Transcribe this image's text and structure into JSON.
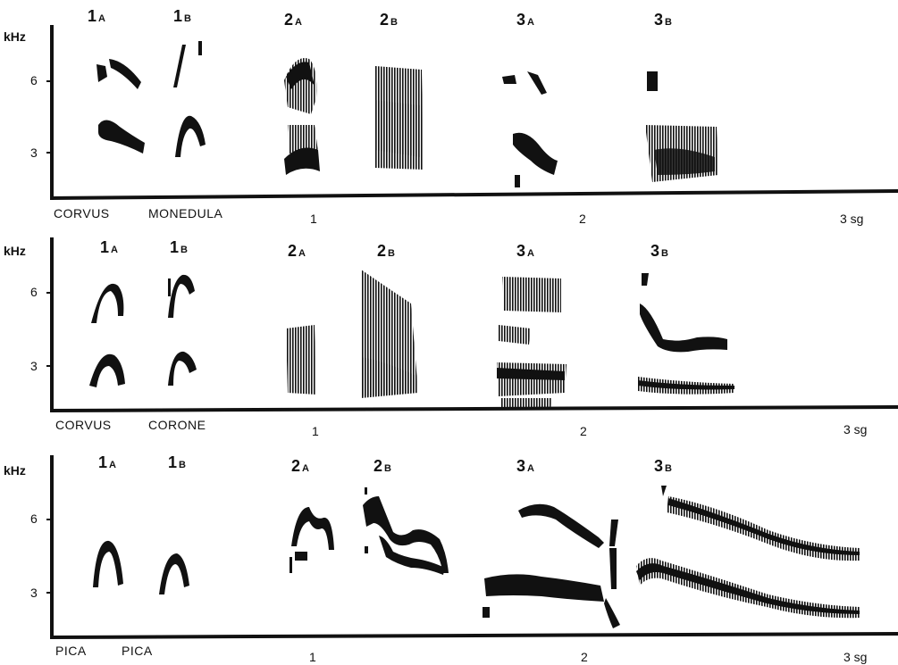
{
  "panels": [
    {
      "id": "monedula",
      "genus": "CORVUS",
      "species": "MONEDULA",
      "y_unit": "kHz",
      "y_ticks": [
        "6",
        "3"
      ],
      "time_ticks": [
        "1",
        "2",
        "3 sg"
      ],
      "segments": [
        {
          "num": "1",
          "sub": "A"
        },
        {
          "num": "1",
          "sub": "B"
        },
        {
          "num": "2",
          "sub": "A"
        },
        {
          "num": "2",
          "sub": "B"
        },
        {
          "num": "3",
          "sub": "A"
        },
        {
          "num": "3",
          "sub": "B"
        }
      ]
    },
    {
      "id": "corone",
      "genus": "CORVUS",
      "species": "CORONE",
      "y_unit": "kHz",
      "y_ticks": [
        "6",
        "3"
      ],
      "time_ticks": [
        "1",
        "2",
        "3 sg"
      ],
      "segments": [
        {
          "num": "1",
          "sub": "A"
        },
        {
          "num": "1",
          "sub": "B"
        },
        {
          "num": "2",
          "sub": "A"
        },
        {
          "num": "2",
          "sub": "B"
        },
        {
          "num": "3",
          "sub": "A"
        },
        {
          "num": "3",
          "sub": "B"
        }
      ]
    },
    {
      "id": "pica",
      "genus": "PICA",
      "species": "PICA",
      "y_unit": "kHz",
      "y_ticks": [
        "6",
        "3"
      ],
      "time_ticks": [
        "1",
        "2",
        "3 sg"
      ],
      "segments": [
        {
          "num": "1",
          "sub": "A"
        },
        {
          "num": "1",
          "sub": "B"
        },
        {
          "num": "2",
          "sub": "A"
        },
        {
          "num": "2",
          "sub": "B"
        },
        {
          "num": "3",
          "sub": "A"
        },
        {
          "num": "3",
          "sub": "B"
        }
      ]
    }
  ],
  "colors": {
    "ink": "#111111",
    "paper": "#ffffff"
  }
}
